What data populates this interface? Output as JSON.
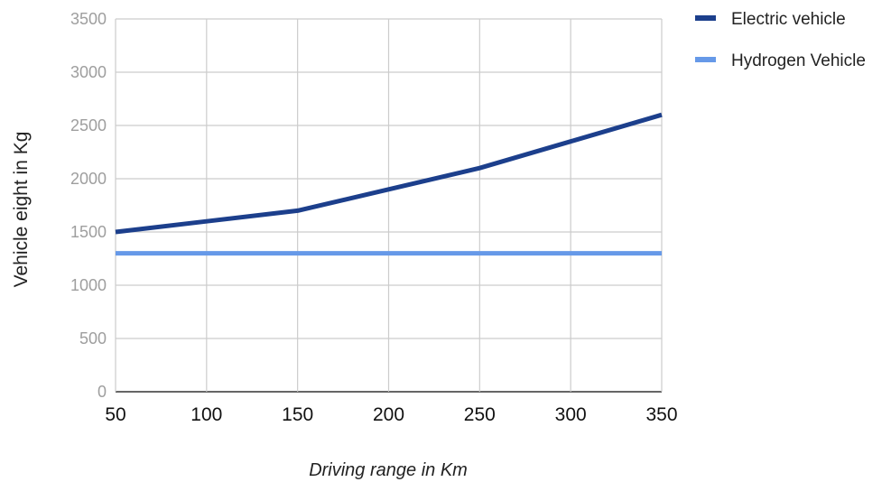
{
  "chart_data": {
    "type": "line",
    "x": [
      50,
      100,
      150,
      200,
      250,
      300,
      350
    ],
    "series": [
      {
        "name": "Electric vehicle",
        "values": [
          1500,
          1600,
          1700,
          1900,
          2100,
          2350,
          2600
        ],
        "color": "#1c3f8c"
      },
      {
        "name": "Hydrogen Vehicle",
        "values": [
          1300,
          1300,
          1300,
          1300,
          1300,
          1300,
          1300
        ],
        "color": "#6699e8"
      }
    ],
    "xlabel": "Driving range in Km",
    "ylabel": "Vehicle eight in Kg",
    "xlim": [
      50,
      350
    ],
    "ylim": [
      0,
      3500
    ],
    "xticks": [
      "50",
      "100",
      "150",
      "200",
      "250",
      "300",
      "350"
    ],
    "yticks": [
      "0",
      "500",
      "1000",
      "1500",
      "2000",
      "2500",
      "3000",
      "3500"
    ],
    "grid": true,
    "legend_position": "top-right"
  }
}
